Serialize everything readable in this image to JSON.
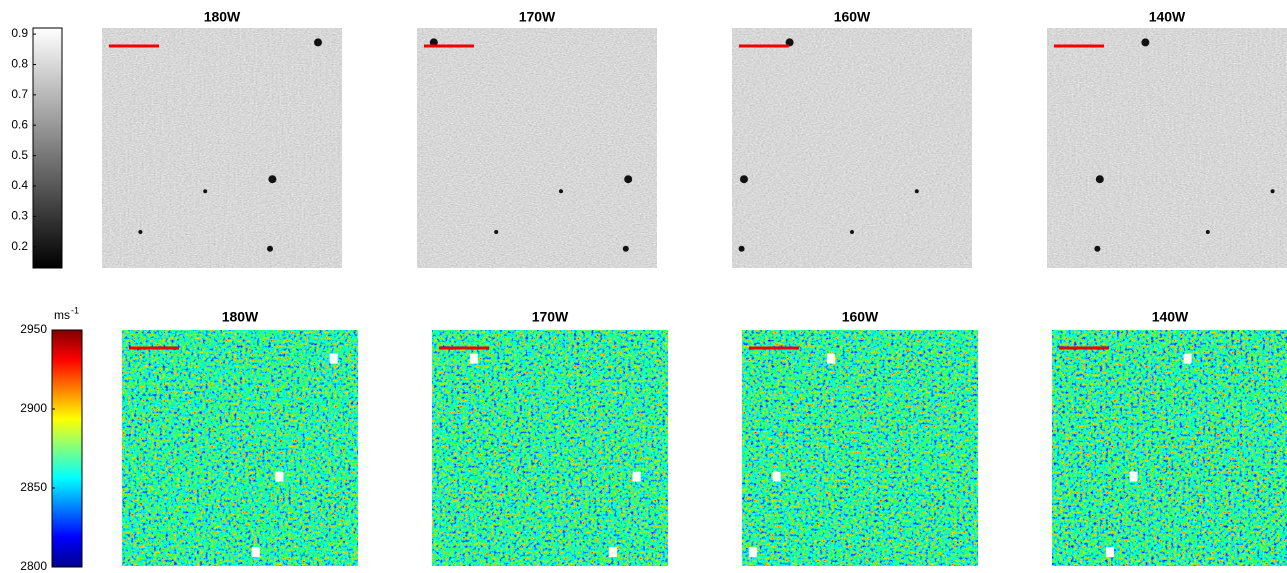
{
  "colorbars": [
    {
      "lim": [
        0.13,
        0.92
      ],
      "ticks": [
        0.9,
        0.8,
        0.7,
        0.6,
        0.5,
        0.4,
        0.3,
        0.2
      ]
    },
    {
      "unit": "ms",
      "unit_exponent": "-1",
      "lim": [
        2800,
        2950
      ],
      "ticks": [
        2950,
        2900,
        2850,
        2800
      ]
    }
  ],
  "panels": {
    "top": [
      "180W",
      "170W",
      "160W",
      "140W"
    ],
    "bottom": [
      "180W",
      "170W",
      "160W",
      "140W"
    ]
  }
}
